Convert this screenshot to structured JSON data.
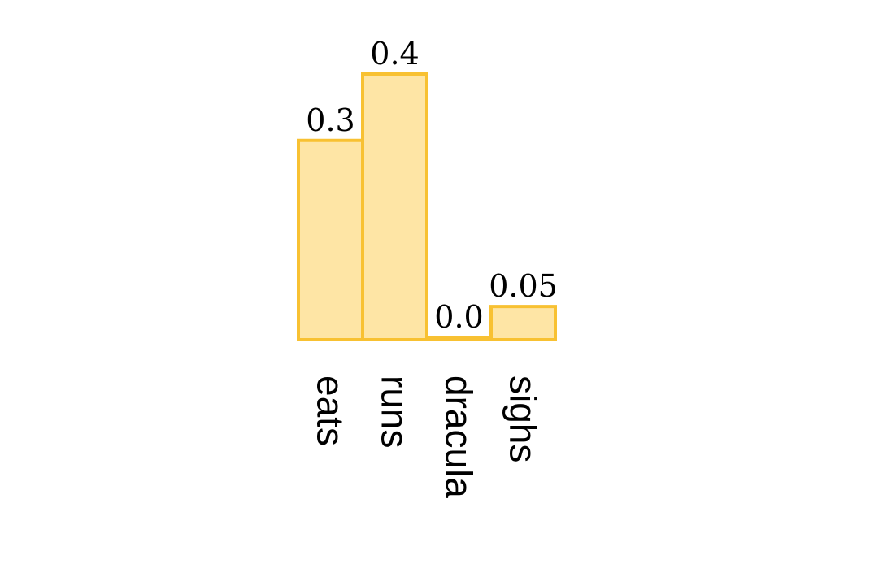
{
  "chart_data": {
    "type": "bar",
    "title": "",
    "xlabel": "",
    "ylabel": "",
    "categories": [
      "eats",
      "runs",
      "dracula",
      "sighs"
    ],
    "values": [
      0.3,
      0.4,
      0.0,
      0.05
    ],
    "value_labels": [
      "0.3",
      "0.4",
      "0.0",
      "0.05"
    ],
    "ylim": [
      0,
      0.4
    ],
    "grid": false,
    "legend": "none",
    "colors": {
      "bar_fill": "#fee5a5",
      "bar_stroke": "#f8c132",
      "text": "#000000"
    }
  }
}
